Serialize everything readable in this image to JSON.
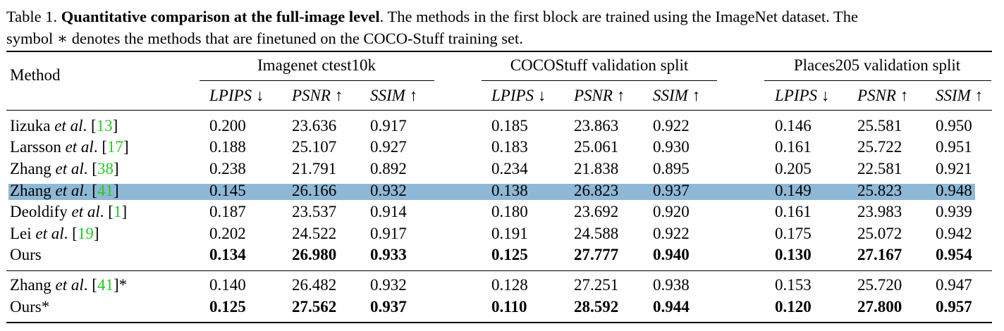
{
  "caption": {
    "label": "Table 1.",
    "title": "Quantitative comparison at the full-image level",
    "text1": ". The methods in the first block are trained using the ImageNet dataset. The",
    "text2": "symbol ∗ denotes the methods that are finetuned on the COCO-Stuff training set."
  },
  "header": {
    "method": "Method",
    "groups": [
      "Imagenet ctest10k",
      "COCOStuff validation split",
      "Places205 validation split"
    ],
    "metrics": [
      "LPIPS ↓",
      "PSNR ↑",
      "SSIM ↑",
      "LPIPS ↓",
      "PSNR ↑",
      "SSIM ↑",
      "LPIPS ↓",
      "PSNR ↑",
      "SSIM ↑"
    ]
  },
  "rows": [
    {
      "name": "Iizuka",
      "etal": "et al",
      "dot": ".",
      "ref": "13",
      "star": "",
      "bold": false,
      "values": [
        "0.200",
        "23.636",
        "0.917",
        "0.185",
        "23.863",
        "0.922",
        "0.146",
        "25.581",
        "0.950"
      ]
    },
    {
      "name": "Larsson",
      "etal": "et al",
      "dot": ".",
      "ref": "17",
      "star": "",
      "bold": false,
      "values": [
        "0.188",
        "25.107",
        "0.927",
        "0.183",
        "25.061",
        "0.930",
        "0.161",
        "25.722",
        "0.951"
      ]
    },
    {
      "name": "Zhang",
      "etal": "et al",
      "dot": ".",
      "ref": "38",
      "star": "",
      "bold": false,
      "values": [
        "0.238",
        "21.791",
        "0.892",
        "0.234",
        "21.838",
        "0.895",
        "0.205",
        "22.581",
        "0.921"
      ]
    },
    {
      "name": "Zhang",
      "etal": "et al",
      "dot": ".",
      "ref": "41",
      "star": "",
      "bold": false,
      "highlight": true,
      "values": [
        "0.145",
        "26.166",
        "0.932",
        "0.138",
        "26.823",
        "0.937",
        "0.149",
        "25.823",
        "0.948"
      ]
    },
    {
      "name": "Deoldify",
      "etal": "et al",
      "dot": ".",
      "ref": "1",
      "star": "",
      "bold": false,
      "values": [
        "0.187",
        "23.537",
        "0.914",
        "0.180",
        "23.692",
        "0.920",
        "0.161",
        "23.983",
        "0.939"
      ]
    },
    {
      "name": "Lei",
      "etal": "et al",
      "dot": ".",
      "ref": "19",
      "star": "",
      "bold": false,
      "values": [
        "0.202",
        "24.522",
        "0.917",
        "0.191",
        "24.588",
        "0.922",
        "0.175",
        "25.072",
        "0.942"
      ]
    },
    {
      "name": "Ours",
      "etal": "",
      "dot": "",
      "ref": "",
      "star": "",
      "bold": true,
      "values": [
        "0.134",
        "26.980",
        "0.933",
        "0.125",
        "27.777",
        "0.940",
        "0.130",
        "27.167",
        "0.954"
      ]
    },
    {
      "name": "Zhang",
      "etal": "et al",
      "dot": ".",
      "ref": "41",
      "star": "*",
      "bold": false,
      "values": [
        "0.140",
        "26.482",
        "0.932",
        "0.128",
        "27.251",
        "0.938",
        "0.153",
        "25.720",
        "0.947"
      ]
    },
    {
      "name": "Ours*",
      "etal": "",
      "dot": "",
      "ref": "",
      "star": "",
      "bold": true,
      "values": [
        "0.125",
        "27.562",
        "0.937",
        "0.110",
        "28.592",
        "0.944",
        "0.120",
        "27.800",
        "0.957"
      ]
    }
  ]
}
